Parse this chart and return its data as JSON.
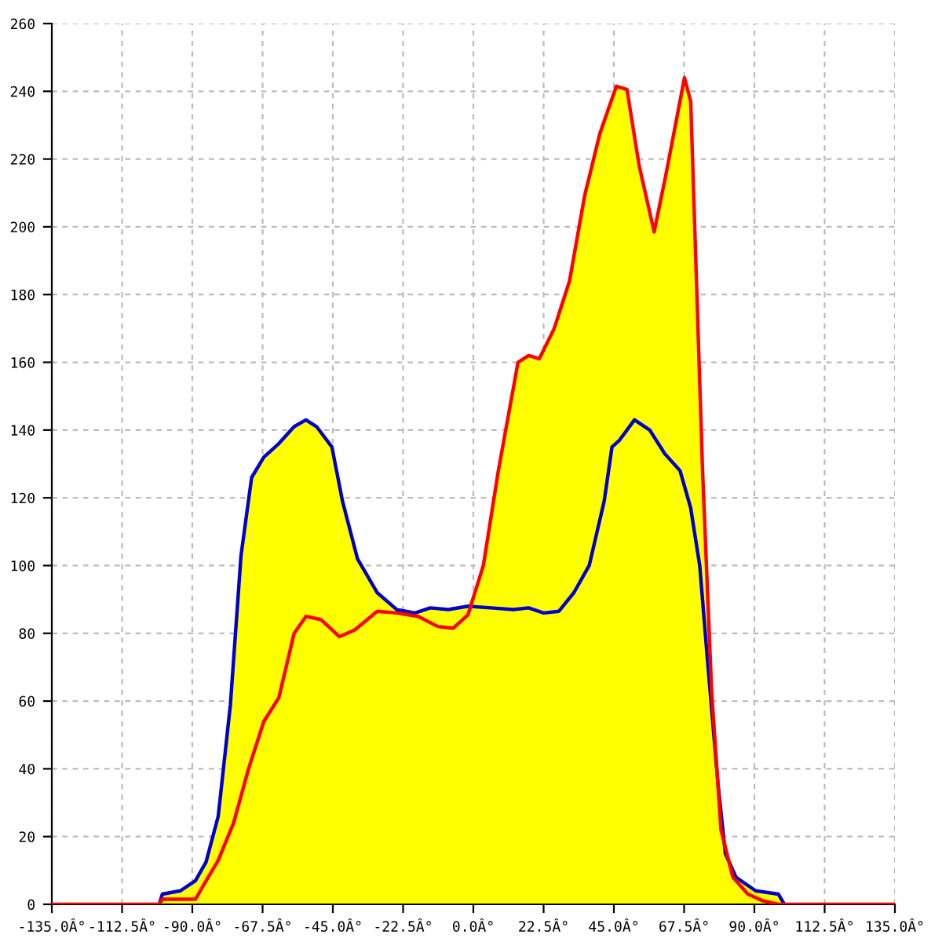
{
  "chart_data": {
    "type": "area",
    "xlim": [
      -135,
      135
    ],
    "ylim": [
      0,
      260
    ],
    "xticks": [
      {
        "value": -135,
        "label": "-135.0Â°"
      },
      {
        "value": -112.5,
        "label": "-112.5Â°"
      },
      {
        "value": -90,
        "label": "-90.0Â°"
      },
      {
        "value": -67.5,
        "label": "-67.5Â°"
      },
      {
        "value": -45,
        "label": "-45.0Â°"
      },
      {
        "value": -22.5,
        "label": "-22.5Â°"
      },
      {
        "value": 0,
        "label": "0.0Â°"
      },
      {
        "value": 22.5,
        "label": "22.5Â°"
      },
      {
        "value": 45,
        "label": "45.0Â°"
      },
      {
        "value": 67.5,
        "label": "67.5Â°"
      },
      {
        "value": 90,
        "label": "90.0Â°"
      },
      {
        "value": 112.5,
        "label": "112.5Â°"
      },
      {
        "value": 135,
        "label": "135.0Â°"
      }
    ],
    "yticks": [
      0,
      20,
      40,
      60,
      80,
      100,
      120,
      140,
      160,
      180,
      200,
      220,
      240,
      260
    ],
    "grid": true,
    "series": [
      {
        "color": "#ffff00",
        "x": [
          -100.6,
          -99.6,
          -93.8,
          -89,
          -85.6,
          -81.7,
          -77.8,
          -74.4,
          -71,
          -67.1,
          -62.3,
          -57.4,
          -53.6,
          -50.2,
          -45.3,
          -41.9,
          -37.1,
          -30.8,
          -24.5,
          -18.7,
          -13.8,
          -8,
          -1.7,
          3.2,
          8,
          14.3,
          17.7,
          21.1,
          25.9,
          30.8,
          35.6,
          40.5,
          45.8,
          49.2,
          53.1,
          57.9,
          61.8,
          67.6,
          69.6,
          73.4,
          76.3,
          78.3,
          80.7,
          84.1,
          90.4,
          97.7,
          99.6
        ],
        "values": [
          0,
          3,
          4,
          7,
          12.5,
          26,
          59,
          103,
          126,
          132,
          136,
          141,
          143,
          141,
          135,
          119,
          102,
          92,
          87,
          86,
          87.5,
          87,
          88,
          100,
          128,
          160,
          162,
          161,
          170,
          184,
          209,
          227.5,
          241.5,
          240.5,
          218,
          198.5,
          216,
          244,
          237,
          128,
          63,
          36,
          15,
          8,
          4,
          3,
          0
        ]
      },
      {
        "type": "line",
        "color": "#0000cc",
        "x": [
          -100.6,
          -99.6,
          -93.8,
          -89,
          -85.6,
          -81.7,
          -77.8,
          -74.4,
          -71,
          -67.1,
          -62.3,
          -57.4,
          -53.6,
          -50.2,
          -45.3,
          -41.9,
          -37.1,
          -30.8,
          -24.5,
          -18.7,
          -13.8,
          -8,
          -1.7,
          5.6,
          12.8,
          17.7,
          22.5,
          27.4,
          32.2,
          37.1,
          41.9,
          44.4,
          46.8,
          51.6,
          56.5,
          61.3,
          66.2,
          69.6,
          72.5,
          74.9,
          78.3,
          80.7,
          84.1,
          90.4,
          97.7,
          99.6
        ],
        "values": [
          0,
          3,
          4,
          7,
          12.5,
          26,
          59,
          103,
          126,
          132,
          136,
          141,
          143,
          141,
          135,
          119,
          102,
          92,
          87,
          86,
          87.5,
          87,
          88,
          87.5,
          87,
          87.5,
          86,
          86.5,
          92,
          100,
          119,
          135,
          137,
          143,
          140,
          133,
          128,
          117,
          100,
          73,
          36,
          15,
          8,
          4,
          3,
          0
        ]
      },
      {
        "type": "line",
        "color": "#ff0000",
        "x": [
          -135,
          -100.6,
          -99.6,
          -89,
          -86.5,
          -81.7,
          -76.8,
          -72,
          -67.1,
          -62.3,
          -57.4,
          -53.6,
          -48.7,
          -42.9,
          -38,
          -30.8,
          -24.5,
          -17.7,
          -11.4,
          -6.5,
          -1.7,
          3.2,
          8,
          14.3,
          17.7,
          21.1,
          25.9,
          30.8,
          35.6,
          40.5,
          45.8,
          49.2,
          53.1,
          57.9,
          61.8,
          67.6,
          69.6,
          73.4,
          76.3,
          79.3,
          83.1,
          87.9,
          92.8,
          97.7,
          135
        ],
        "values": [
          0,
          0,
          1.5,
          1.5,
          5.5,
          13,
          24,
          40,
          54,
          61,
          80,
          85,
          84,
          79,
          81,
          86.5,
          86,
          85,
          82,
          81.5,
          85.5,
          100,
          128,
          160,
          162,
          161,
          170,
          184,
          209,
          227.5,
          241.5,
          240.5,
          218,
          198.5,
          216,
          244,
          237,
          128,
          63,
          22,
          8,
          3,
          1,
          0,
          0
        ]
      }
    ]
  }
}
